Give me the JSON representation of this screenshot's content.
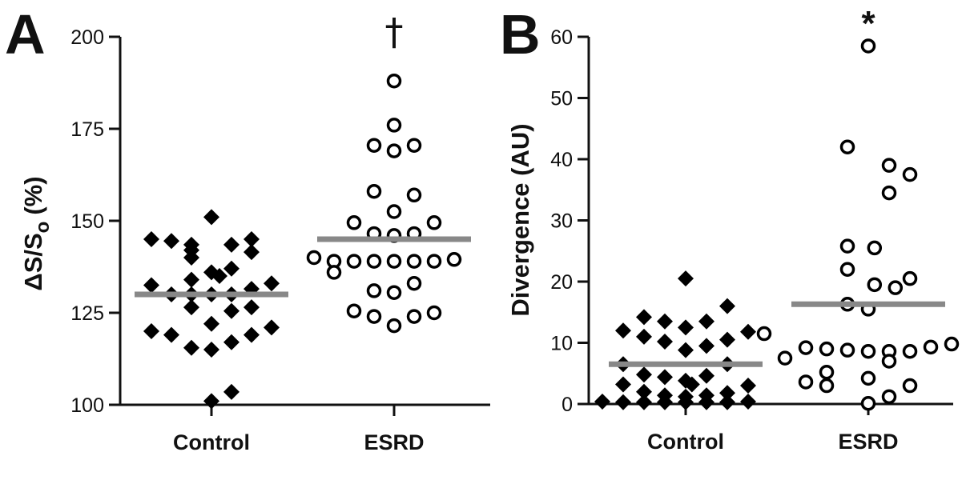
{
  "chart_data": [
    {
      "type": "scatter",
      "panel": "A",
      "ylabel": "ΔS/Sₒ (%)",
      "ylabel_parts": {
        "delta": "ΔS/S",
        "sub": "o",
        "unit": "(%)"
      },
      "ylim": [
        100,
        200
      ],
      "yticks": [
        100,
        125,
        150,
        175,
        200
      ],
      "categories": [
        "Control",
        "ESRD"
      ],
      "significance": {
        "ESRD": "†"
      },
      "colors": {
        "mean": "#888888",
        "marker": "#000000"
      },
      "series": [
        {
          "name": "Control",
          "marker": "filled-diamond",
          "mean": 130,
          "points": [
            {
              "dx": 0,
              "y": 151
            },
            {
              "dx": -3,
              "y": 145
            },
            {
              "dx": -2,
              "y": 144.5
            },
            {
              "dx": -1,
              "y": 143.5
            },
            {
              "dx": 1,
              "y": 143.5
            },
            {
              "dx": 2,
              "y": 145
            },
            {
              "dx": 2,
              "y": 141.5
            },
            {
              "dx": -1,
              "y": 142
            },
            {
              "dx": -1,
              "y": 140
            },
            {
              "dx": 1,
              "y": 137
            },
            {
              "dx": 0,
              "y": 136
            },
            {
              "dx": 0.4,
              "y": 135
            },
            {
              "dx": -1,
              "y": 134
            },
            {
              "dx": -3,
              "y": 132.5
            },
            {
              "dx": 2,
              "y": 131.5
            },
            {
              "dx": 3,
              "y": 133
            },
            {
              "dx": -2,
              "y": 130
            },
            {
              "dx": 0,
              "y": 130
            },
            {
              "dx": -1,
              "y": 130
            },
            {
              "dx": 1,
              "y": 130
            },
            {
              "dx": -1,
              "y": 126.5
            },
            {
              "dx": 1,
              "y": 125.5
            },
            {
              "dx": 2,
              "y": 126.5
            },
            {
              "dx": 0,
              "y": 122
            },
            {
              "dx": -3,
              "y": 120
            },
            {
              "dx": 3,
              "y": 121
            },
            {
              "dx": -2,
              "y": 119
            },
            {
              "dx": 2,
              "y": 119
            },
            {
              "dx": 1,
              "y": 117
            },
            {
              "dx": -1,
              "y": 115.5
            },
            {
              "dx": 0,
              "y": 115
            },
            {
              "dx": 0,
              "y": 101
            },
            {
              "dx": 1,
              "y": 103.5
            }
          ]
        },
        {
          "name": "ESRD",
          "marker": "open-circle",
          "mean": 145,
          "points": [
            {
              "dx": 0,
              "y": 188
            },
            {
              "dx": 0,
              "y": 176
            },
            {
              "dx": -1,
              "y": 170.5
            },
            {
              "dx": 0,
              "y": 169
            },
            {
              "dx": 1,
              "y": 170.5
            },
            {
              "dx": -1,
              "y": 158
            },
            {
              "dx": 1,
              "y": 157
            },
            {
              "dx": 0,
              "y": 152.5
            },
            {
              "dx": -2,
              "y": 149.5
            },
            {
              "dx": 2,
              "y": 149.5
            },
            {
              "dx": -1,
              "y": 146.5
            },
            {
              "dx": 0,
              "y": 146
            },
            {
              "dx": 1,
              "y": 146.5
            },
            {
              "dx": -4,
              "y": 140
            },
            {
              "dx": -3,
              "y": 139
            },
            {
              "dx": -2,
              "y": 139
            },
            {
              "dx": -1,
              "y": 139
            },
            {
              "dx": 0,
              "y": 139
            },
            {
              "dx": 1,
              "y": 139
            },
            {
              "dx": 2,
              "y": 139
            },
            {
              "dx": 3,
              "y": 139.5
            },
            {
              "dx": -3,
              "y": 136
            },
            {
              "dx": 1,
              "y": 133
            },
            {
              "dx": -1,
              "y": 131
            },
            {
              "dx": 0,
              "y": 130.5
            },
            {
              "dx": -2,
              "y": 125.5
            },
            {
              "dx": -1,
              "y": 124
            },
            {
              "dx": 1,
              "y": 124
            },
            {
              "dx": 2,
              "y": 125
            },
            {
              "dx": 0,
              "y": 121.5
            }
          ]
        }
      ]
    },
    {
      "type": "scatter",
      "panel": "B",
      "ylabel": "Divergence (AU)",
      "ylim": [
        0,
        60
      ],
      "yticks": [
        0,
        10,
        20,
        30,
        40,
        50,
        60
      ],
      "categories": [
        "Control",
        "ESRD"
      ],
      "significance": {
        "ESRD": "*"
      },
      "colors": {
        "mean": "#888888",
        "marker": "#000000"
      },
      "series": [
        {
          "name": "Control",
          "marker": "filled-diamond",
          "mean": 6.5,
          "points": [
            {
              "dx": 0,
              "y": 20.5
            },
            {
              "dx": 2,
              "y": 16
            },
            {
              "dx": -2,
              "y": 14.2
            },
            {
              "dx": -1,
              "y": 13.5
            },
            {
              "dx": 1,
              "y": 13.5
            },
            {
              "dx": 0,
              "y": 12.5
            },
            {
              "dx": -3,
              "y": 12
            },
            {
              "dx": 3,
              "y": 11.8
            },
            {
              "dx": -2,
              "y": 11
            },
            {
              "dx": 2,
              "y": 10.5
            },
            {
              "dx": -1,
              "y": 10.2
            },
            {
              "dx": 1,
              "y": 9.5
            },
            {
              "dx": 0,
              "y": 8.8
            },
            {
              "dx": -3,
              "y": 6.5
            },
            {
              "dx": 2,
              "y": 6.5
            },
            {
              "dx": -2,
              "y": 4.8
            },
            {
              "dx": -1,
              "y": 4.4
            },
            {
              "dx": 0,
              "y": 3.8
            },
            {
              "dx": 1,
              "y": 4.6
            },
            {
              "dx": 0.3,
              "y": 3.2
            },
            {
              "dx": -3,
              "y": 3.2
            },
            {
              "dx": 3,
              "y": 3
            },
            {
              "dx": -2,
              "y": 2
            },
            {
              "dx": -1,
              "y": 1.4
            },
            {
              "dx": 0,
              "y": 1.2
            },
            {
              "dx": 1,
              "y": 1.4
            },
            {
              "dx": 2,
              "y": 1.8
            },
            {
              "dx": -4,
              "y": 0.4
            },
            {
              "dx": -3,
              "y": 0.3
            },
            {
              "dx": -2,
              "y": 0.3
            },
            {
              "dx": -1,
              "y": 0.3
            },
            {
              "dx": 0,
              "y": 0.3
            },
            {
              "dx": 1,
              "y": 0.3
            },
            {
              "dx": 2,
              "y": 0.3
            },
            {
              "dx": 3,
              "y": 0.4
            }
          ]
        },
        {
          "name": "ESRD",
          "marker": "open-circle",
          "mean": 16.3,
          "points": [
            {
              "dx": 0,
              "y": 58.5
            },
            {
              "dx": -1,
              "y": 42
            },
            {
              "dx": 1,
              "y": 39
            },
            {
              "dx": 2,
              "y": 37.5
            },
            {
              "dx": 1,
              "y": 34.5
            },
            {
              "dx": -1,
              "y": 25.8
            },
            {
              "dx": 0.3,
              "y": 25.5
            },
            {
              "dx": -1,
              "y": 22
            },
            {
              "dx": 2,
              "y": 20.5
            },
            {
              "dx": 0.3,
              "y": 19.5
            },
            {
              "dx": 1.3,
              "y": 19
            },
            {
              "dx": -1,
              "y": 16.3
            },
            {
              "dx": 0,
              "y": 15.5
            },
            {
              "dx": -5,
              "y": 11.5
            },
            {
              "dx": -3,
              "y": 9.2
            },
            {
              "dx": -2,
              "y": 9
            },
            {
              "dx": -1,
              "y": 8.8
            },
            {
              "dx": 0,
              "y": 8.6
            },
            {
              "dx": 1,
              "y": 8.6
            },
            {
              "dx": 2,
              "y": 8.6
            },
            {
              "dx": 3,
              "y": 9.3
            },
            {
              "dx": 4,
              "y": 9.8
            },
            {
              "dx": -4,
              "y": 7.5
            },
            {
              "dx": 1,
              "y": 7
            },
            {
              "dx": -2,
              "y": 5.2
            },
            {
              "dx": 0,
              "y": 4.2
            },
            {
              "dx": -3,
              "y": 3.6
            },
            {
              "dx": -2,
              "y": 3
            },
            {
              "dx": 2,
              "y": 3
            },
            {
              "dx": 1,
              "y": 1.2
            },
            {
              "dx": 0,
              "y": 0.1
            }
          ]
        }
      ]
    }
  ]
}
